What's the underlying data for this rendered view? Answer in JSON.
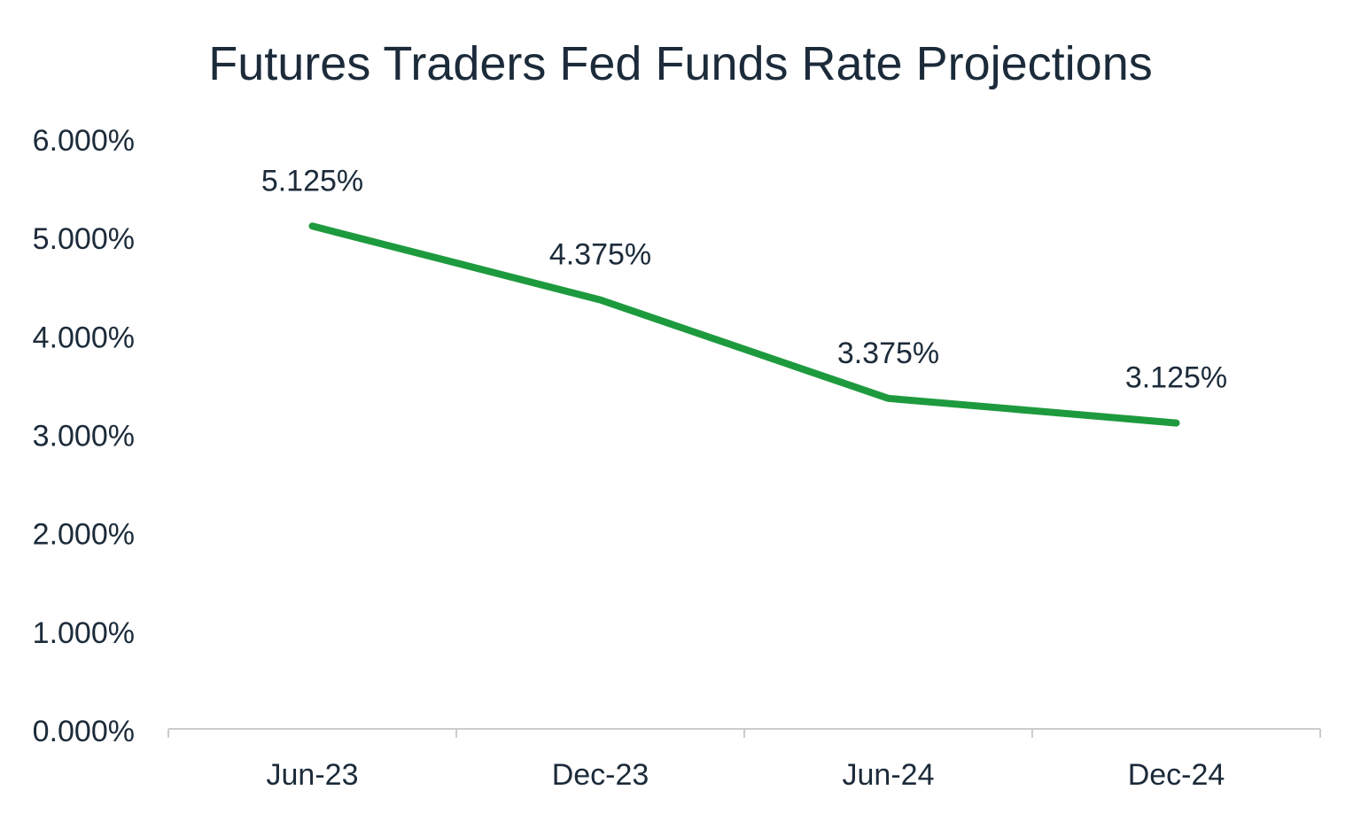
{
  "chart_data": {
    "type": "line",
    "title": "Futures Traders Fed Funds Rate Projections",
    "xlabel": "",
    "ylabel": "",
    "categories": [
      "Jun-23",
      "Dec-23",
      "Jun-24",
      "Dec-24"
    ],
    "values": [
      5.125,
      4.375,
      3.375,
      3.125
    ],
    "data_labels": [
      "5.125%",
      "4.375%",
      "3.375%",
      "3.125%"
    ],
    "ylim": [
      0,
      6
    ],
    "yticks": [
      0,
      1,
      2,
      3,
      4,
      5,
      6
    ],
    "ytick_labels": [
      "0.000%",
      "1.000%",
      "2.000%",
      "3.000%",
      "4.000%",
      "5.000%",
      "6.000%"
    ],
    "grid": false,
    "legend": "none",
    "colors": {
      "line": "#1e9a3e",
      "text": "#1c2b3a",
      "axis": "#cccccc"
    }
  }
}
